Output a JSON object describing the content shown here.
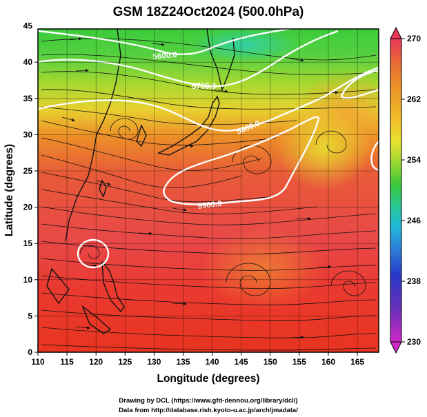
{
  "title": "GSM 18Z24Oct2024 (500.0hPa)",
  "xlabel": "Longitude (degrees)",
  "ylabel": "Latitude  (degrees)",
  "x_ticks": [
    "110",
    "115",
    "120",
    "125",
    "130",
    "135",
    "140",
    "145",
    "150",
    "155",
    "160",
    "165"
  ],
  "y_ticks": [
    "0",
    "5",
    "10",
    "15",
    "20",
    "25",
    "30",
    "35",
    "40",
    "45"
  ],
  "colorbar_ticks": [
    "270",
    "262",
    "254",
    "246",
    "238",
    "230"
  ],
  "contour_labels": [
    "5600.0",
    "5700.0",
    "5800.0",
    "5900.0"
  ],
  "credits": [
    "Drawing by DCL (https://www.gfd-dennou.org/library/dcl/)",
    "Data from http://database.rish.kyoto-u.ac.jp/arch/jmadata/"
  ],
  "colorbar_colors": [
    "#e8365a",
    "#e87030",
    "#ec9a28",
    "#f2c02a",
    "#e8e030",
    "#98d830",
    "#3cc83a",
    "#28c890",
    "#20b8d8",
    "#2c7ad8",
    "#2838c8",
    "#6830b8",
    "#d028c8"
  ]
}
